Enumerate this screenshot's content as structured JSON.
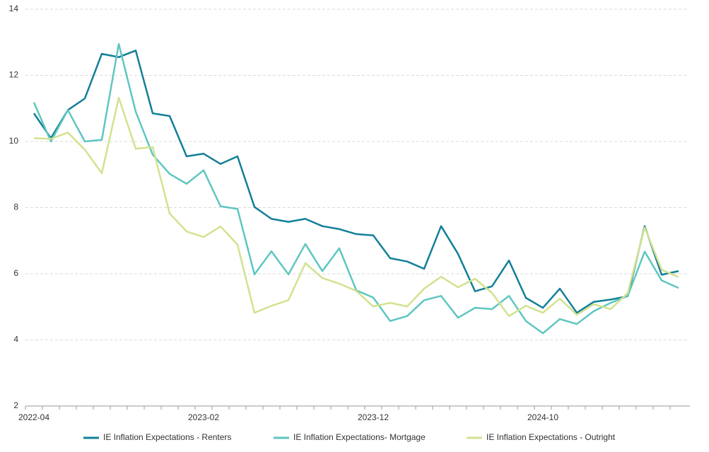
{
  "chart_data": {
    "type": "line",
    "categories": [
      "2022-04",
      null,
      null,
      null,
      null,
      null,
      null,
      null,
      null,
      null,
      "2023-02",
      null,
      null,
      null,
      null,
      null,
      null,
      null,
      null,
      null,
      "2023-12",
      null,
      null,
      null,
      null,
      null,
      null,
      null,
      null,
      null,
      "2024-10",
      null,
      null,
      null,
      null,
      null,
      null,
      null,
      null
    ],
    "series": [
      {
        "name": "IE Inflation Expectations - Renters",
        "color": "#137f98",
        "values": [
          10.85,
          10.1,
          10.95,
          11.3,
          12.65,
          12.55,
          12.75,
          10.85,
          10.77,
          9.55,
          9.63,
          9.32,
          9.55,
          8.02,
          7.66,
          7.57,
          7.66,
          7.44,
          7.35,
          7.2,
          7.16,
          6.47,
          6.37,
          6.15,
          7.44,
          6.6,
          5.47,
          5.62,
          6.4,
          5.27,
          4.97,
          5.55,
          4.82,
          5.15,
          5.22,
          5.32,
          7.44,
          5.97,
          6.08
        ]
      },
      {
        "name": "IE Inflation Expectations- Mortgage",
        "color": "#5ec6c0",
        "values": [
          11.18,
          10.0,
          10.95,
          10.0,
          10.05,
          12.95,
          10.9,
          9.6,
          9.02,
          8.72,
          9.13,
          8.04,
          7.96,
          5.98,
          6.68,
          5.98,
          6.9,
          6.08,
          6.77,
          5.5,
          5.28,
          4.57,
          4.72,
          5.2,
          5.33,
          4.67,
          4.97,
          4.93,
          5.33,
          4.57,
          4.2,
          4.63,
          4.48,
          4.87,
          5.12,
          5.33,
          6.67,
          5.8,
          5.57
        ]
      },
      {
        "name": "IE Inflation Expectations - Outright",
        "color": "#d2e28e",
        "values": [
          10.1,
          10.08,
          10.27,
          9.75,
          9.04,
          11.32,
          9.78,
          9.83,
          7.82,
          7.28,
          7.11,
          7.43,
          6.88,
          4.82,
          5.03,
          5.2,
          6.32,
          5.87,
          5.7,
          5.48,
          5.01,
          5.12,
          5.01,
          5.55,
          5.91,
          5.59,
          5.85,
          5.42,
          4.72,
          5.03,
          4.82,
          5.25,
          4.76,
          5.08,
          4.93,
          5.42,
          7.4,
          6.12,
          5.9
        ]
      }
    ],
    "ylim": [
      2,
      14
    ],
    "yticks": [
      2,
      4,
      6,
      8,
      10,
      12,
      14
    ],
    "grid": true,
    "legend": "bottom"
  }
}
